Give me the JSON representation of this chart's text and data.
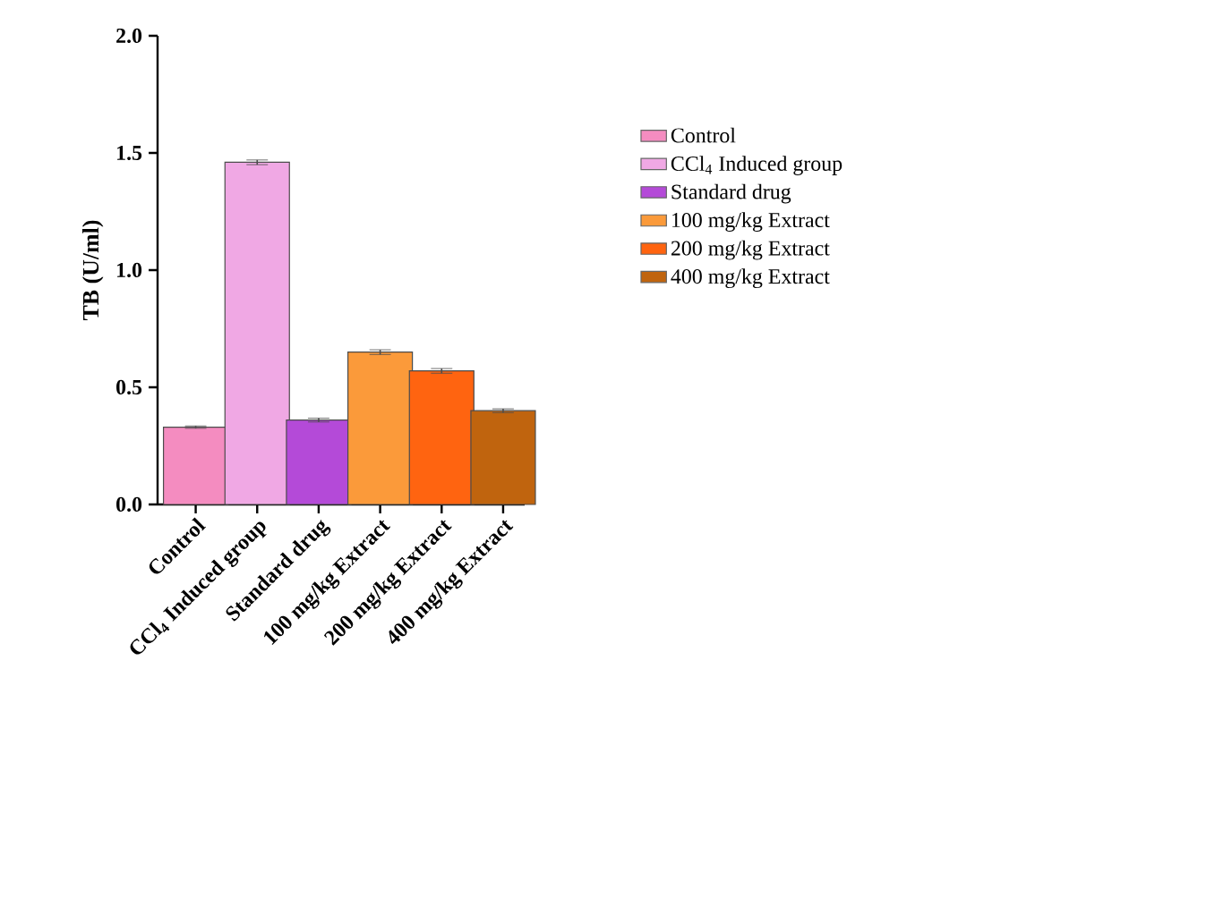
{
  "chart_data": {
    "type": "bar",
    "ylabel": "TB (U/ml)",
    "categories": [
      "Control",
      "CCl$_{4}$ Induced group",
      "Standard drug",
      "100 mg/kg Extract",
      "200 mg/kg Extract",
      "400 mg/kg Extract"
    ],
    "series": [
      {
        "name": "Control",
        "color": "#f48cc0",
        "values": [
          0.33,
          null,
          null,
          null,
          null,
          null
        ],
        "errors": [
          0.005,
          null,
          null,
          null,
          null,
          null
        ]
      },
      {
        "name": "CCl$_{4}$ Induced group",
        "color": "#f0a8e4",
        "values": [
          null,
          1.46,
          null,
          null,
          null,
          null
        ],
        "errors": [
          null,
          0.01,
          null,
          null,
          null,
          null
        ]
      },
      {
        "name": "Standard drug",
        "color": "#b44ad8",
        "values": [
          null,
          null,
          0.36,
          null,
          null,
          null
        ],
        "errors": [
          null,
          null,
          0.008,
          null,
          null,
          null
        ]
      },
      {
        "name": "100 mg/kg Extract",
        "color": "#fb9a3a",
        "values": [
          null,
          null,
          null,
          0.65,
          null,
          null
        ],
        "errors": [
          null,
          null,
          null,
          0.01,
          null,
          null
        ]
      },
      {
        "name": "200 mg/kg Extract",
        "color": "#ff6410",
        "values": [
          null,
          null,
          null,
          null,
          0.57,
          null
        ],
        "errors": [
          null,
          null,
          null,
          null,
          0.01,
          null
        ]
      },
      {
        "name": "400 mg/kg Extract",
        "color": "#c0640e",
        "values": [
          null,
          null,
          null,
          null,
          null,
          0.4
        ],
        "errors": [
          null,
          null,
          null,
          null,
          null,
          0.008
        ]
      }
    ],
    "ylim": [
      0,
      2.0
    ],
    "yticks": [
      {
        "value": 0,
        "label": "0.0"
      },
      {
        "value": 0.5,
        "label": "0.5"
      },
      {
        "value": 1.0,
        "label": "1.0"
      },
      {
        "value": 1.5,
        "label": "1.5"
      },
      {
        "value": 2.0,
        "label": "2.0"
      }
    ],
    "legend": "right",
    "grid": false
  }
}
